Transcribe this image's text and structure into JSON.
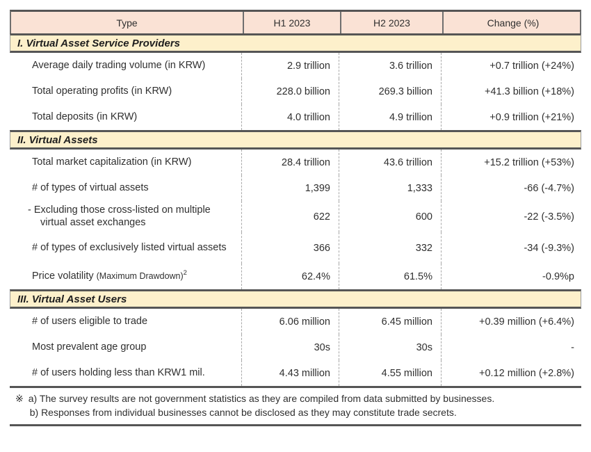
{
  "colors": {
    "header_bg": "#fae2d5",
    "section_bg": "#fdf0cb",
    "rule": "#555555",
    "divider": "#a8a8a8",
    "head_divider": "#6f6f6f",
    "text": "#2f2f2f"
  },
  "table": {
    "columns": [
      "Type",
      "H1 2023",
      "H2 2023",
      "Change (%)"
    ],
    "sections": [
      {
        "title": "I. Virtual Asset Service Providers",
        "rows": [
          {
            "label": "Average daily trading volume (in KRW)",
            "h1": "2.9 trillion",
            "h2": "3.6 trillion",
            "change": "+0.7 trillion (+24%)"
          },
          {
            "label": "Total operating profits (in KRW)",
            "h1": "228.0 billion",
            "h2": "269.3 billion",
            "change": "+41.3 billion (+18%)"
          },
          {
            "label": "Total deposits (in KRW)",
            "h1": "4.0 trillion",
            "h2": "4.9 trillion",
            "change": "+0.9 trillion (+21%)"
          }
        ]
      },
      {
        "title": "II. Virtual Assets",
        "rows": [
          {
            "label": "Total market capitalization (in KRW)",
            "h1": "28.4 trillion",
            "h2": "43.6 trillion",
            "change": "+15.2 trillion (+53%)"
          },
          {
            "label": "# of types of virtual assets",
            "h1": "1,399",
            "h2": "1,333",
            "change": "-66 (-4.7%)"
          },
          {
            "label": "- Excluding those cross-listed on multiple virtual asset exchanges",
            "h1": "622",
            "h2": "600",
            "change": "-22 (-3.5%)"
          },
          {
            "label": "# of types of exclusively listed virtual assets",
            "h1": "366",
            "h2": "332",
            "change": "-34 (-9.3%)"
          },
          {
            "label": "Price volatility",
            "label_paren": "(Maximum Drawdown)",
            "label_sup": "2",
            "h1": "62.4%",
            "h2": "61.5%",
            "change": "-0.9%p"
          }
        ]
      },
      {
        "title": "III. Virtual Asset Users",
        "rows": [
          {
            "label": "# of users eligible to trade",
            "h1": "6.06 million",
            "h2": "6.45 million",
            "change": "+0.39 million (+6.4%)"
          },
          {
            "label": "Most prevalent age group",
            "h1": "30s",
            "h2": "30s",
            "change": "-"
          },
          {
            "label": "# of users holding less than KRW1 mil.",
            "h1": "4.43 million",
            "h2": "4.55 million",
            "change": "+0.12 million (+2.8%)"
          }
        ]
      }
    ]
  },
  "footnote": {
    "marker": "※",
    "lines": [
      "a) The survey results are not government statistics as they are compiled from data submitted by businesses.",
      "b) Responses from individual businesses cannot be disclosed as they may constitute trade secrets."
    ]
  }
}
